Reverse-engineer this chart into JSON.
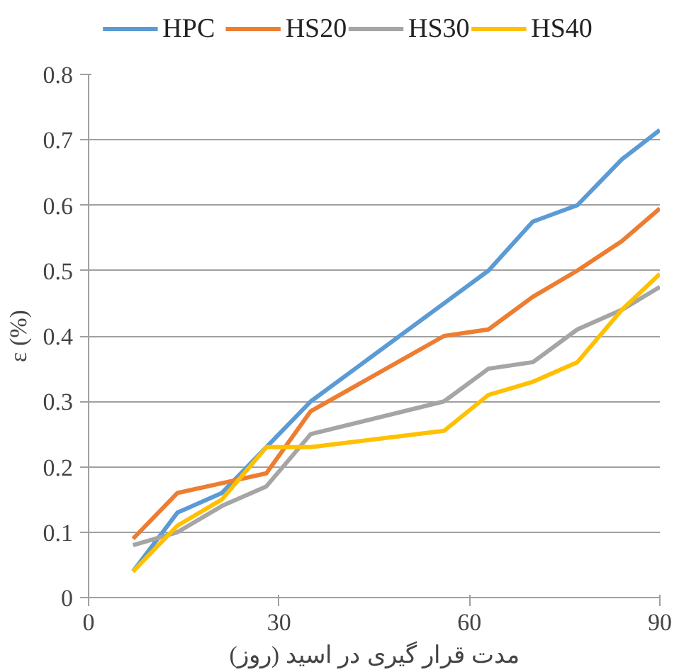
{
  "chart_data": {
    "type": "line",
    "xlabel": "مدت قرار گیری در اسید (روز)",
    "ylabel": "ε (%)",
    "x": [
      7,
      14,
      21,
      28,
      35,
      56,
      63,
      70,
      77,
      84,
      90
    ],
    "series": [
      {
        "name": "HPC",
        "color": "#5b9bd5",
        "values": [
          0.04,
          0.13,
          0.16,
          0.23,
          0.3,
          0.45,
          0.5,
          0.575,
          0.6,
          0.67,
          0.715
        ]
      },
      {
        "name": "HS20",
        "color": "#ed7d31",
        "values": [
          0.09,
          0.16,
          0.175,
          0.19,
          0.285,
          0.4,
          0.41,
          0.46,
          0.5,
          0.545,
          0.595
        ]
      },
      {
        "name": "HS30",
        "color": "#a5a5a5",
        "values": [
          0.08,
          0.1,
          0.14,
          0.17,
          0.25,
          0.3,
          0.35,
          0.36,
          0.41,
          0.44,
          0.475
        ]
      },
      {
        "name": "HS40",
        "color": "#ffc000",
        "values": [
          0.04,
          0.11,
          0.15,
          0.23,
          0.23,
          0.255,
          0.31,
          0.33,
          0.36,
          0.44,
          0.495
        ]
      }
    ],
    "xlim": [
      0,
      90
    ],
    "xticks": [
      0,
      30,
      60,
      90
    ],
    "ylim": [
      0,
      0.8
    ],
    "yticks": [
      0,
      0.1,
      0.2,
      0.3,
      0.4,
      0.5,
      0.6,
      0.7,
      0.8
    ],
    "grid": "y",
    "legend": "top",
    "marker": "none",
    "line_style": "solid"
  }
}
